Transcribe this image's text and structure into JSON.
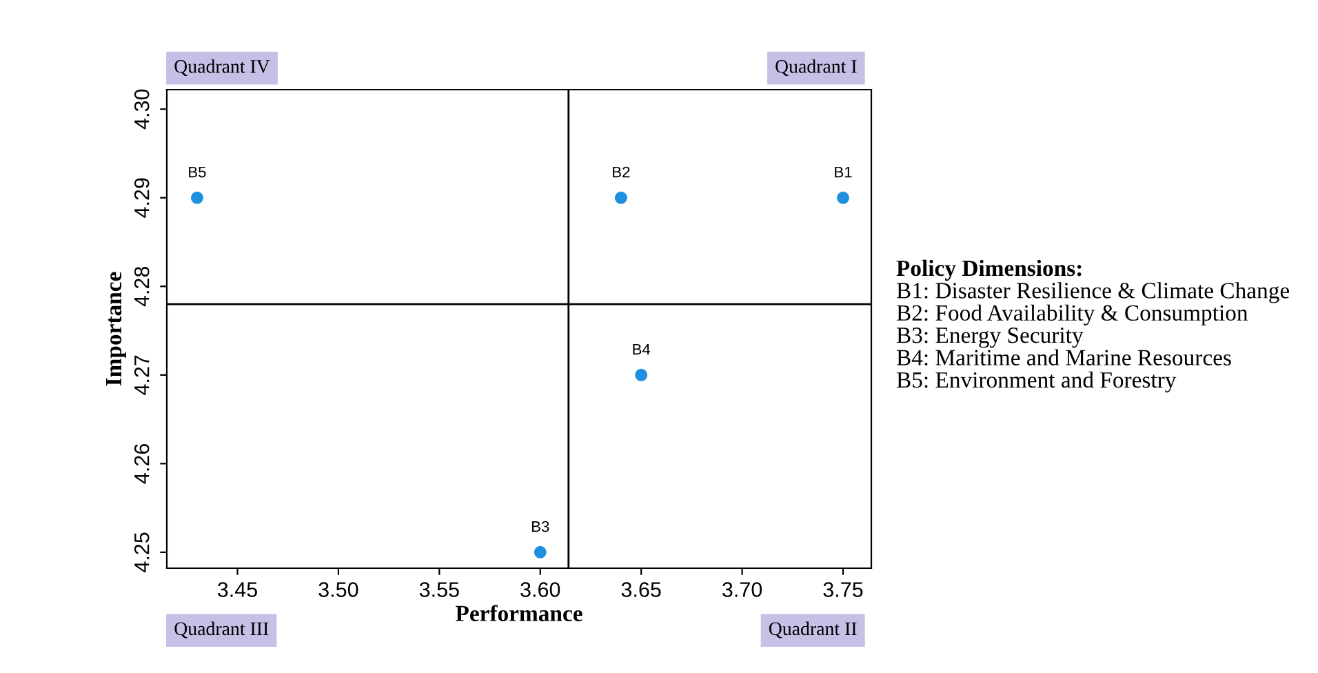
{
  "chart_data": {
    "type": "scatter",
    "xlabel": "Performance",
    "ylabel": "Importance",
    "x": [
      3.75,
      3.64,
      3.6,
      3.65,
      3.43
    ],
    "series": [
      {
        "color": "#1f8fe0",
        "values": [
          4.29,
          4.29,
          4.25,
          4.27,
          4.29
        ]
      }
    ],
    "marker": "circle",
    "grid": false,
    "legend": false,
    "xlim": [
      3.415,
      3.764
    ],
    "ylim": [
      4.2482,
      4.3022
    ],
    "xticks": [
      3.45,
      {
        "value": 3.5,
        "label": "3.50"
      },
      3.55,
      {
        "value": 3.6,
        "label": "3.60"
      },
      3.65,
      {
        "value": 3.7,
        "label": "3.70"
      },
      3.75
    ],
    "yticks": [
      4.25,
      4.26,
      4.27,
      4.28,
      4.29,
      {
        "value": 4.3,
        "label": "4.30"
      }
    ],
    "ref_lines": [
      {
        "axis": "x",
        "value": 3.614,
        "color": "#000000"
      },
      {
        "axis": "y",
        "value": 4.278,
        "color": "#000000"
      }
    ],
    "annotations": [
      "Quadrant I",
      "Quadrant II",
      "Quadrant III",
      "Quadrant IV",
      "Policy Dimensions:",
      "B1: Disaster Resilience & Climate Change",
      "B2: Food Availability & Consumption",
      "B3: Energy Security",
      "B4: Maritime and Marine Resources",
      "B5: Environment and Forestry",
      {
        "text": "B1",
        "x": 3.75,
        "y": 4.29
      },
      {
        "text": "B2",
        "x": 3.64,
        "y": 4.29
      },
      {
        "text": "B3",
        "x": 3.6,
        "y": 4.25
      },
      {
        "text": "B4",
        "x": 3.65,
        "y": 4.27
      },
      {
        "text": "B5",
        "x": 3.43,
        "y": 4.29
      }
    ]
  }
}
